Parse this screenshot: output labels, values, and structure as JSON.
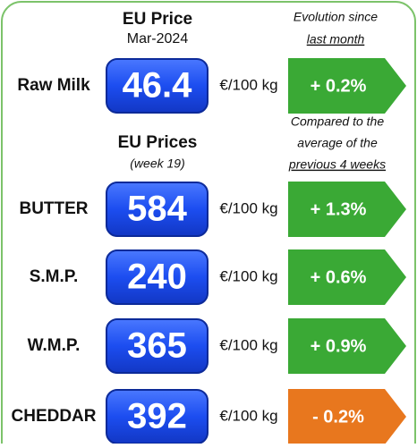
{
  "header": {
    "price_title": "EU Price",
    "price_date": "Mar-2024",
    "evolution_line1": "Evolution since",
    "evolution_line2": "last month"
  },
  "section": {
    "title": "EU Prices",
    "subtitle": "(week 19)",
    "compare_line1": "Compared to the",
    "compare_line2": "average of the",
    "compare_line3": "previous 4 weeks"
  },
  "rows": [
    {
      "label": "Raw Milk",
      "price": 46.4,
      "unit": "€/100 kg",
      "change": "+ 0.2%",
      "color": "#3aa935"
    },
    {
      "label": "BUTTER",
      "price": 584,
      "unit": "€/100 kg",
      "change": "+ 1.3%",
      "color": "#3aa935"
    },
    {
      "label": "S.M.P.",
      "price": 240,
      "unit": "€/100 kg",
      "change": "+ 0.6%",
      "color": "#3aa935"
    },
    {
      "label": "W.M.P.",
      "price": 365,
      "unit": "€/100 kg",
      "change": "+ 0.9%",
      "color": "#3aa935"
    },
    {
      "label": "CHEDDAR",
      "price": 392,
      "unit": "€/100 kg",
      "change": "- 0.2%",
      "color": "#e8771e"
    }
  ]
}
